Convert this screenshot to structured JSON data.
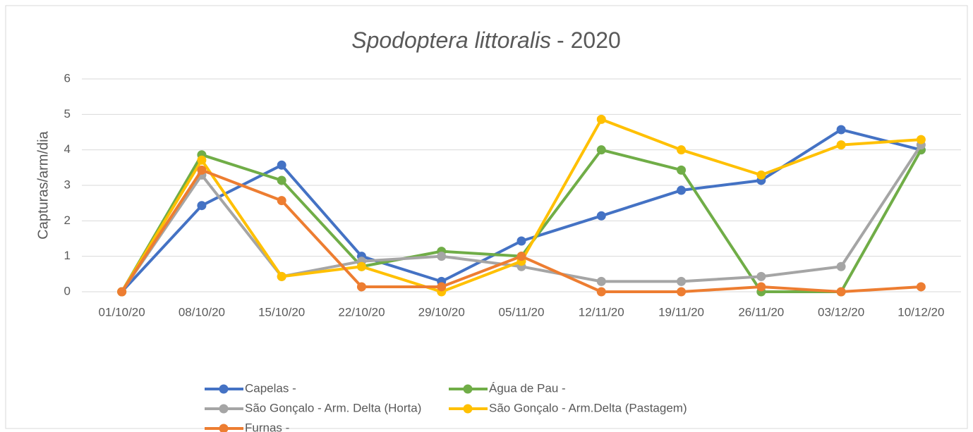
{
  "chart_data": {
    "type": "line",
    "title": [
      "Spodoptera littoralis",
      "- 2020"
    ],
    "ylabel": "Capturas/arm/dia",
    "categories": [
      "01/10/20",
      "08/10/20",
      "15/10/20",
      "22/10/20",
      "29/10/20",
      "05/11/20",
      "12/11/20",
      "19/11/20",
      "26/11/20",
      "03/12/20",
      "10/12/20"
    ],
    "series": [
      {
        "name": "Capelas -",
        "color": "#4472c4",
        "values": [
          0,
          2.43,
          3.57,
          1.0,
          0.29,
          1.43,
          2.14,
          2.86,
          3.14,
          4.57,
          4.0
        ]
      },
      {
        "name": "Água de Pau -",
        "color": "#70ad47",
        "values": [
          0,
          3.86,
          3.14,
          0.71,
          1.14,
          1.0,
          4.0,
          3.43,
          0,
          0,
          4.0
        ]
      },
      {
        "name": "São Gonçalo - Arm. Delta (Horta)",
        "color": "#a5a5a5",
        "values": [
          0,
          3.29,
          0.43,
          0.86,
          1.0,
          0.71,
          0.29,
          0.29,
          0.43,
          0.71,
          4.14
        ]
      },
      {
        "name": "São Gonçalo - Arm.Delta (Pastagem)",
        "color": "#ffc000",
        "values": [
          0,
          3.71,
          0.43,
          0.71,
          0,
          0.86,
          4.86,
          4.0,
          3.29,
          4.14,
          4.29
        ]
      },
      {
        "name": "Furnas -",
        "color": "#ed7d31",
        "values": [
          0,
          3.43,
          2.57,
          0.14,
          0.14,
          1.0,
          0,
          0,
          0.14,
          0,
          0.14
        ]
      }
    ],
    "ylim": [
      0,
      6
    ],
    "yticks": [
      0,
      1,
      2,
      3,
      4,
      5,
      6
    ],
    "grid": true,
    "legend": "bottom"
  }
}
